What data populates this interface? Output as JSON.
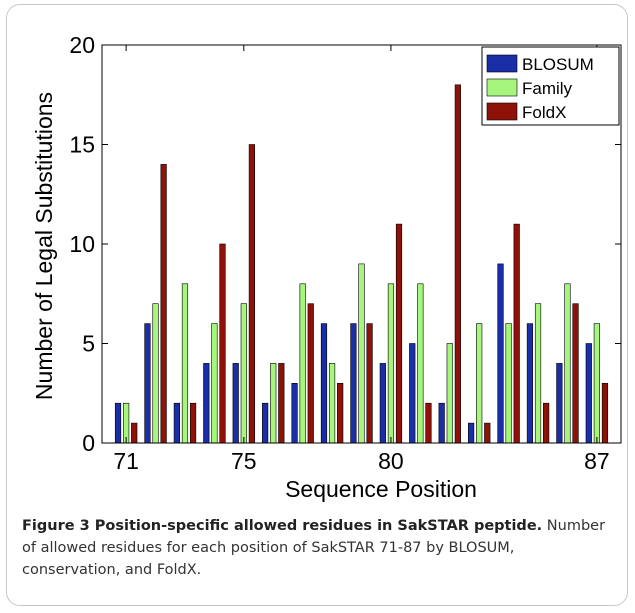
{
  "chart_data": {
    "type": "bar",
    "xlabel": "Sequence Position",
    "ylabel": "Number of Legal Substitutions",
    "x": [
      71,
      72,
      73,
      74,
      75,
      76,
      77,
      78,
      79,
      80,
      81,
      82,
      83,
      84,
      85,
      86,
      87
    ],
    "x_tick_labels": [
      "71",
      "75",
      "80",
      "87"
    ],
    "x_tick_positions": [
      71,
      75,
      80,
      87
    ],
    "ylim": [
      0,
      20
    ],
    "y_ticks": [
      0,
      5,
      10,
      15,
      20
    ],
    "grid": false,
    "legend_position": "top-right",
    "series": [
      {
        "name": "BLOSUM",
        "color": "#1a2ea8",
        "values": [
          2,
          6,
          2,
          4,
          4,
          2,
          3,
          6,
          6,
          4,
          5,
          2,
          1,
          9,
          6,
          4,
          5
        ]
      },
      {
        "name": "Family",
        "color": "#a6f57c",
        "values": [
          2,
          7,
          8,
          6,
          7,
          4,
          8,
          4,
          9,
          8,
          8,
          5,
          6,
          6,
          7,
          8,
          6
        ]
      },
      {
        "name": "FoldX",
        "color": "#8f1208",
        "values": [
          1,
          14,
          2,
          10,
          15,
          4,
          7,
          3,
          6,
          11,
          2,
          18,
          1,
          11,
          2,
          7,
          3
        ]
      }
    ]
  },
  "caption": {
    "title": "Figure 3 Position-specific allowed residues in SakSTAR peptide",
    "period": ".",
    "body": "Number of allowed residues for each position of SakSTAR 71-87 by BLOSUM, conservation, and FoldX."
  }
}
